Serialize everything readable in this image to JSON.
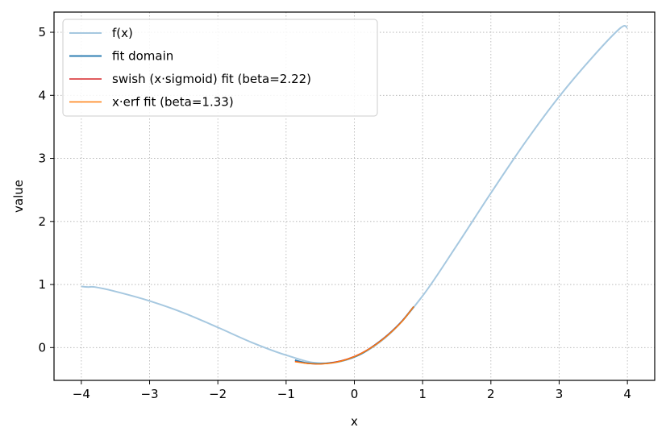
{
  "chart_data": {
    "type": "line",
    "xlabel": "x",
    "ylabel": "value",
    "xlim": [
      -4.4,
      4.4
    ],
    "ylim": [
      -0.52,
      5.32
    ],
    "xticks": [
      -4,
      -3,
      -2,
      -1,
      0,
      1,
      2,
      3,
      4
    ],
    "xtick_labels": [
      "−4",
      "−3",
      "−2",
      "−1",
      "0",
      "1",
      "2",
      "3",
      "4"
    ],
    "yticks": [
      0,
      1,
      2,
      3,
      4,
      5
    ],
    "ytick_labels": [
      "0",
      "1",
      "2",
      "3",
      "4",
      "5"
    ],
    "grid": true,
    "legend_position": "top-left",
    "series": [
      {
        "name": "f(x)",
        "color": "#a6c8e0",
        "x": [
          -4.0,
          -3.9,
          -3.8,
          -3.5,
          -3.0,
          -2.5,
          -2.0,
          -1.5,
          -1.0,
          -0.5,
          0.0,
          0.5,
          1.0,
          1.5,
          2.0,
          2.5,
          3.0,
          3.5,
          3.9,
          4.0
        ],
        "y": [
          0.97,
          0.96,
          0.96,
          0.89,
          0.74,
          0.55,
          0.32,
          0.08,
          -0.12,
          -0.25,
          -0.15,
          0.2,
          0.82,
          1.62,
          2.45,
          3.25,
          3.98,
          4.62,
          5.07,
          5.07
        ]
      },
      {
        "name": "fit domain",
        "color": "#2f7fb3",
        "x": [
          -0.87,
          -0.7,
          -0.5,
          -0.3,
          -0.1,
          0.1,
          0.3,
          0.5,
          0.7,
          0.87
        ],
        "y": [
          -0.2,
          -0.245,
          -0.255,
          -0.235,
          -0.185,
          -0.1,
          0.04,
          0.21,
          0.42,
          0.65
        ]
      },
      {
        "name": "swish (x·sigmoid) fit (beta=2.22)",
        "color": "#d62728",
        "x": [
          -0.87,
          -0.7,
          -0.5,
          -0.3,
          -0.1,
          0.1,
          0.3,
          0.5,
          0.7,
          0.87
        ],
        "y": [
          -0.22,
          -0.25,
          -0.26,
          -0.235,
          -0.18,
          -0.09,
          0.04,
          0.21,
          0.42,
          0.65
        ]
      },
      {
        "name": "x·erf fit (beta=1.33)",
        "color": "#ff7f0e",
        "x": [
          -0.87,
          -0.7,
          -0.5,
          -0.3,
          -0.1,
          0.1,
          0.3,
          0.5,
          0.7,
          0.87
        ],
        "y": [
          -0.225,
          -0.25,
          -0.26,
          -0.24,
          -0.185,
          -0.095,
          0.035,
          0.205,
          0.415,
          0.65
        ]
      }
    ]
  }
}
